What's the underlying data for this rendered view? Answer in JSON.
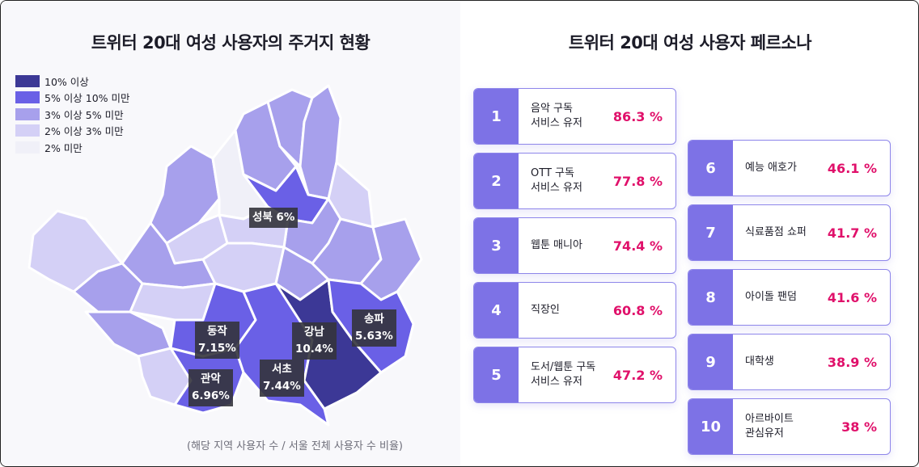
{
  "map": {
    "title": "트위터 20대 여성 사용자의 주거지 현황",
    "legend": [
      {
        "label": "10% 이상",
        "color": "#3c3896"
      },
      {
        "label": "5% 이상 10% 미만",
        "color": "#6a60e6"
      },
      {
        "label": "3% 이상 5% 미만",
        "color": "#a7a0ec"
      },
      {
        "label": "2% 이상 3% 미만",
        "color": "#d4d0f6"
      },
      {
        "label": "2% 미만",
        "color": "#f0f0f8"
      }
    ],
    "labels": [
      {
        "text": "성북 6%"
      },
      {
        "text": "동작\n7.15%"
      },
      {
        "text": "관악\n6.96%"
      },
      {
        "text": "서초\n7.44%"
      },
      {
        "text": "강남\n10.4%"
      },
      {
        "text": "송파\n5.63%"
      }
    ],
    "note": "(해당 지역 사용자 수 / 서울 전체 사용자 수 비율)"
  },
  "persona": {
    "title": "트위터 20대 여성 사용자 페르소나"
  },
  "chart_data": [
    {
      "type": "map",
      "title": "트위터 20대 여성 사용자의 주거지 현황",
      "units": "%",
      "regions": [
        {
          "name": "성북",
          "value": 6
        },
        {
          "name": "동작",
          "value": 7.15
        },
        {
          "name": "관악",
          "value": 6.96
        },
        {
          "name": "서초",
          "value": 7.44
        },
        {
          "name": "강남",
          "value": 10.4
        },
        {
          "name": "송파",
          "value": 5.63
        }
      ],
      "legend_bins": [
        "10% 이상",
        "5% 이상 10% 미만",
        "3% 이상 5% 미만",
        "2% 이상 3% 미만",
        "2% 미만"
      ],
      "legend_position": "top-left",
      "note": "(해당 지역 사용자 수 / 서울 전체 사용자 수 비율)"
    },
    {
      "type": "table",
      "title": "트위터 20대 여성 사용자 페르소나",
      "rows": [
        {
          "rank": "1",
          "label": "음악 구독\n서비스 유저",
          "value": "86.3 %"
        },
        {
          "rank": "2",
          "label": "OTT 구독\n서비스 유저",
          "value": "77.8 %"
        },
        {
          "rank": "3",
          "label": "웹툰 매니아",
          "value": "74.4 %"
        },
        {
          "rank": "4",
          "label": "직장인",
          "value": "60.8 %"
        },
        {
          "rank": "5",
          "label": "도서/웹툰 구독\n서비스 유저",
          "value": "47.2 %"
        },
        {
          "rank": "6",
          "label": "예능 애호가",
          "value": "46.1 %"
        },
        {
          "rank": "7",
          "label": "식료품점 쇼퍼",
          "value": "41.7 %"
        },
        {
          "rank": "8",
          "label": "아이돌 팬덤",
          "value": "41.6 %"
        },
        {
          "rank": "9",
          "label": "대학생",
          "value": "38.9 %"
        },
        {
          "rank": "10",
          "label": "아르바이트\n관심유저",
          "value": "38 %"
        }
      ]
    }
  ]
}
